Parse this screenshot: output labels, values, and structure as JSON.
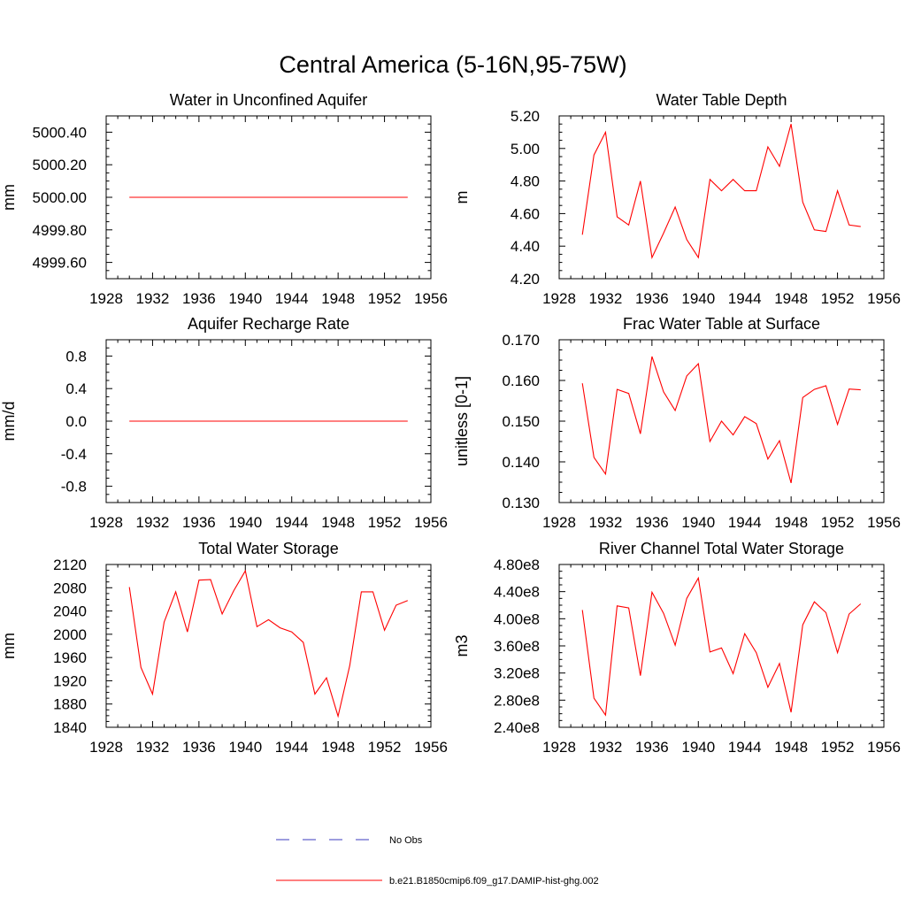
{
  "figure": {
    "title": "Central America (5-16N,95-75W)",
    "legend": [
      {
        "label": "No Obs",
        "color": "#3b3bbf",
        "dash": "dashed"
      },
      {
        "label": "b.e21.B1850cmip6.f09_g17.DAMIP-hist-ghg.002",
        "color": "#ff0000",
        "dash": "solid"
      }
    ]
  },
  "chart_data": [
    {
      "type": "line",
      "title": "Water in Unconfined Aquifer",
      "xlabel": "",
      "ylabel": "mm",
      "xlim": [
        1928,
        1956
      ],
      "ylim": [
        4999.5,
        5000.5
      ],
      "xticks": [
        1928,
        1932,
        1936,
        1940,
        1944,
        1948,
        1952,
        1956
      ],
      "xtick_labels": [
        "1928",
        "1932",
        "1936",
        "1940",
        "1944",
        "1948",
        "1952",
        "1956"
      ],
      "yticks": [
        4999.6,
        4999.8,
        5000.0,
        5000.2,
        5000.4
      ],
      "ytick_labels": [
        "4999.60",
        "4999.80",
        "5000.00",
        "5000.20",
        "5000.40"
      ],
      "grid": false,
      "x": [
        1930,
        1954
      ],
      "series": [
        {
          "values": [
            5000.0,
            5000.0
          ],
          "color": "#ff0000"
        }
      ]
    },
    {
      "type": "line",
      "title": "Water Table Depth",
      "xlabel": "",
      "ylabel": "m",
      "xlim": [
        1928,
        1956
      ],
      "ylim": [
        4.2,
        5.2
      ],
      "xticks": [
        1928,
        1932,
        1936,
        1940,
        1944,
        1948,
        1952,
        1956
      ],
      "xtick_labels": [
        "1928",
        "1932",
        "1936",
        "1940",
        "1944",
        "1948",
        "1952",
        "1956"
      ],
      "yticks": [
        4.2,
        4.4,
        4.6,
        4.8,
        5.0,
        5.2
      ],
      "ytick_labels": [
        "4.20",
        "4.40",
        "4.60",
        "4.80",
        "5.00",
        "5.20"
      ],
      "grid": false,
      "x": [
        1930,
        1931,
        1932,
        1933,
        1934,
        1935,
        1936,
        1937,
        1938,
        1939,
        1940,
        1941,
        1942,
        1943,
        1944,
        1945,
        1946,
        1947,
        1948,
        1949,
        1950,
        1951,
        1952,
        1953,
        1954
      ],
      "series": [
        {
          "values": [
            4.47,
            4.96,
            5.1,
            4.58,
            4.53,
            4.8,
            4.33,
            4.48,
            4.64,
            4.44,
            4.33,
            4.81,
            4.74,
            4.81,
            4.74,
            4.74,
            5.01,
            4.89,
            5.15,
            4.67,
            4.5,
            4.49,
            4.74,
            4.53,
            4.52
          ],
          "color": "#ff0000"
        }
      ]
    },
    {
      "type": "line",
      "title": "Aquifer Recharge Rate",
      "xlabel": "",
      "ylabel": "mm/d",
      "xlim": [
        1928,
        1956
      ],
      "ylim": [
        -1.0,
        1.0
      ],
      "xticks": [
        1928,
        1932,
        1936,
        1940,
        1944,
        1948,
        1952,
        1956
      ],
      "xtick_labels": [
        "1928",
        "1932",
        "1936",
        "1940",
        "1944",
        "1948",
        "1952",
        "1956"
      ],
      "yticks": [
        -0.8,
        -0.4,
        0.0,
        0.4,
        0.8
      ],
      "ytick_labels": [
        "-0.8",
        "-0.4",
        "0.0",
        "0.4",
        "0.8"
      ],
      "grid": false,
      "x": [
        1930,
        1954
      ],
      "series": [
        {
          "values": [
            0.0,
            0.0
          ],
          "color": "#ff0000"
        }
      ]
    },
    {
      "type": "line",
      "title": "Frac Water Table at Surface",
      "xlabel": "",
      "ylabel": "unitless [0-1]",
      "xlim": [
        1928,
        1956
      ],
      "ylim": [
        0.13,
        0.17
      ],
      "xticks": [
        1928,
        1932,
        1936,
        1940,
        1944,
        1948,
        1952,
        1956
      ],
      "xtick_labels": [
        "1928",
        "1932",
        "1936",
        "1940",
        "1944",
        "1948",
        "1952",
        "1956"
      ],
      "yticks": [
        0.13,
        0.14,
        0.15,
        0.16,
        0.17
      ],
      "ytick_labels": [
        "0.130",
        "0.140",
        "0.150",
        "0.160",
        "0.170"
      ],
      "grid": false,
      "x": [
        1930,
        1931,
        1932,
        1933,
        1934,
        1935,
        1936,
        1937,
        1938,
        1939,
        1940,
        1941,
        1942,
        1943,
        1944,
        1945,
        1946,
        1947,
        1948,
        1949,
        1950,
        1951,
        1952,
        1953,
        1954
      ],
      "series": [
        {
          "values": [
            0.1593,
            0.1411,
            0.137,
            0.1578,
            0.1568,
            0.1469,
            0.1659,
            0.1572,
            0.1526,
            0.1611,
            0.1641,
            0.145,
            0.15,
            0.1466,
            0.1511,
            0.1494,
            0.1407,
            0.1452,
            0.1348,
            0.1558,
            0.1578,
            0.1587,
            0.1492,
            0.1579,
            0.1577
          ],
          "color": "#ff0000"
        }
      ]
    },
    {
      "type": "line",
      "title": "Total Water Storage",
      "xlabel": "",
      "ylabel": "mm",
      "xlim": [
        1928,
        1956
      ],
      "ylim": [
        1840,
        2120
      ],
      "xticks": [
        1928,
        1932,
        1936,
        1940,
        1944,
        1948,
        1952,
        1956
      ],
      "xtick_labels": [
        "1928",
        "1932",
        "1936",
        "1940",
        "1944",
        "1948",
        "1952",
        "1956"
      ],
      "yticks": [
        1840,
        1880,
        1920,
        1960,
        2000,
        2040,
        2080,
        2120
      ],
      "ytick_labels": [
        "1840",
        "1880",
        "1920",
        "1960",
        "2000",
        "2040",
        "2080",
        "2120"
      ],
      "grid": false,
      "x": [
        1930,
        1931,
        1932,
        1933,
        1934,
        1935,
        1936,
        1937,
        1938,
        1939,
        1940,
        1941,
        1942,
        1943,
        1944,
        1945,
        1946,
        1947,
        1948,
        1949,
        1950,
        1951,
        1952,
        1953,
        1954
      ],
      "series": [
        {
          "values": [
            2081,
            1943,
            1897,
            2021,
            2073,
            2004,
            2093,
            2094,
            2035,
            2075,
            2109,
            2013,
            2025,
            2011,
            2004,
            1986,
            1897,
            1925,
            1859,
            1946,
            2073,
            2073,
            2007,
            2050,
            2058
          ],
          "color": "#ff0000"
        }
      ]
    },
    {
      "type": "line",
      "title": "River Channel Total Water Storage",
      "xlabel": "",
      "ylabel": "m3",
      "xlim": [
        1928,
        1956
      ],
      "ylim": [
        240000000.0,
        480000000.0
      ],
      "xticks": [
        1928,
        1932,
        1936,
        1940,
        1944,
        1948,
        1952,
        1956
      ],
      "xtick_labels": [
        "1928",
        "1932",
        "1936",
        "1940",
        "1944",
        "1948",
        "1952",
        "1956"
      ],
      "yticks": [
        240000000.0,
        280000000.0,
        320000000.0,
        360000000.0,
        400000000.0,
        440000000.0,
        480000000.0
      ],
      "ytick_labels": [
        "2.40e8",
        "2.80e8",
        "3.20e8",
        "3.60e8",
        "4.00e8",
        "4.40e8",
        "4.80e8"
      ],
      "grid": false,
      "x": [
        1930,
        1931,
        1932,
        1933,
        1934,
        1935,
        1936,
        1937,
        1938,
        1939,
        1940,
        1941,
        1942,
        1943,
        1944,
        1945,
        1946,
        1947,
        1948,
        1949,
        1950,
        1951,
        1952,
        1953,
        1954
      ],
      "series": [
        {
          "values": [
            413000000.0,
            283000000.0,
            258000000.0,
            419000000.0,
            416000000.0,
            316000000.0,
            439000000.0,
            408000000.0,
            361000000.0,
            430000000.0,
            460000000.0,
            351000000.0,
            357000000.0,
            319000000.0,
            378000000.0,
            350000000.0,
            299000000.0,
            334000000.0,
            262000000.0,
            391000000.0,
            425000000.0,
            409000000.0,
            350000000.0,
            407000000.0,
            422000000.0
          ],
          "color": "#ff0000"
        }
      ]
    }
  ]
}
